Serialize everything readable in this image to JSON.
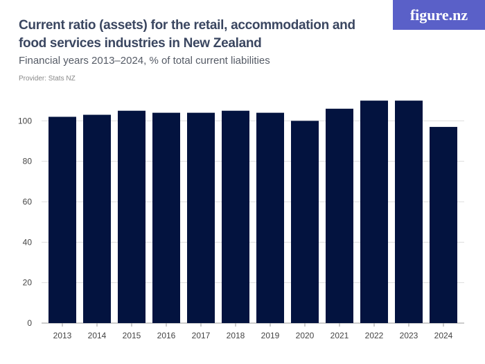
{
  "title": "Current ratio (assets) for the retail, accommodation and food services industries in New Zealand",
  "subtitle": "Financial years 2013–2024, % of total current liabilities",
  "provider": "Provider: Stats NZ",
  "logo": "figure.nz",
  "chart_data": {
    "type": "bar",
    "categories": [
      "2013",
      "2014",
      "2015",
      "2016",
      "2017",
      "2018",
      "2019",
      "2020",
      "2021",
      "2022",
      "2023",
      "2024"
    ],
    "values": [
      102,
      103,
      105,
      104,
      104,
      105,
      104,
      100,
      106,
      110,
      110,
      97
    ],
    "ylim": [
      0,
      110
    ],
    "yticks": [
      0,
      20,
      40,
      60,
      80,
      100
    ],
    "grid": true,
    "bar_color": "#03133f"
  }
}
